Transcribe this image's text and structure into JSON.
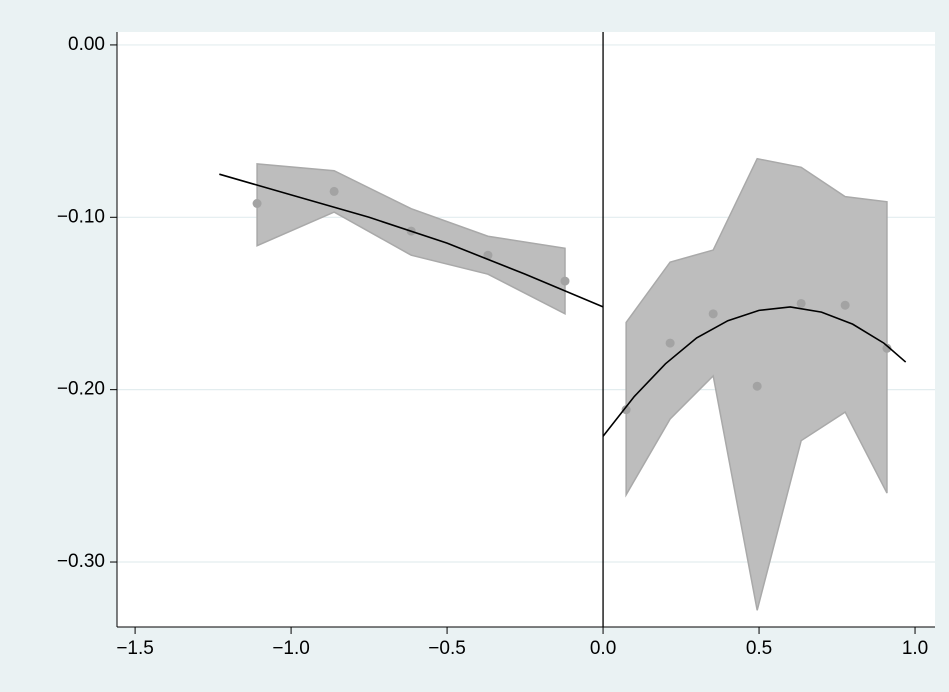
{
  "chart_data": {
    "type": "scatter",
    "xlim": [
      -1.558,
      1.064
    ],
    "ylim": [
      -0.3377,
      0.0075
    ],
    "xticks": [
      {
        "value": -1.5,
        "label": "−1.5"
      },
      {
        "value": -1.0,
        "label": "−1.0"
      },
      {
        "value": -0.5,
        "label": "−0.5"
      },
      {
        "value": 0.0,
        "label": "0.0"
      },
      0.5,
      {
        "value": 1.0,
        "label": "1.0"
      }
    ],
    "yticks": [
      {
        "value": 0.0,
        "label": "0.00"
      },
      {
        "value": -0.1,
        "label": "−0.10"
      },
      {
        "value": -0.2,
        "label": "−0.20"
      },
      {
        "value": -0.3,
        "label": "−0.30"
      }
    ],
    "grid": true,
    "xline": 0,
    "series": [
      {
        "type": "band",
        "color": "#bdbdbd",
        "x": [
          -1.109,
          -0.862,
          -0.615,
          -0.369,
          -0.122
        ],
        "upper": [
          -0.069,
          -0.073,
          -0.095,
          -0.111,
          -0.118
        ],
        "lower": [
          -0.1165,
          -0.097,
          -0.122,
          -0.133,
          -0.156
        ]
      },
      {
        "type": "band",
        "color": "#bdbdbd",
        "x": [
          0.074,
          0.215,
          0.353,
          0.494,
          0.635,
          0.776,
          0.91
        ],
        "upper": [
          -0.161,
          -0.126,
          -0.119,
          -0.066,
          -0.071,
          -0.088,
          -0.091
        ],
        "lower": [
          -0.261,
          -0.217,
          -0.192,
          -0.328,
          -0.2296,
          -0.213,
          -0.26
        ]
      },
      {
        "type": "points",
        "color": "#a3a3a3",
        "x": [
          -1.109,
          -0.862,
          -0.615,
          -0.369,
          -0.122
        ],
        "values": [
          -0.092,
          -0.085,
          -0.108,
          -0.122,
          -0.137
        ]
      },
      {
        "type": "points",
        "color": "#a3a3a3",
        "x": [
          0.074,
          0.215,
          0.353,
          0.494,
          0.635,
          0.776,
          0.91
        ],
        "values": [
          -0.2116,
          -0.173,
          -0.156,
          -0.198,
          -0.15,
          -0.151,
          -0.176
        ]
      },
      {
        "type": "line",
        "color": "#000000",
        "x": [
          -1.23,
          -1.0,
          -0.75,
          -0.5,
          -0.25,
          0.0
        ],
        "values": [
          -0.075,
          -0.087,
          -0.1,
          -0.115,
          -0.133,
          -0.152
        ]
      },
      {
        "type": "line",
        "color": "#000000",
        "x": [
          0.0,
          0.1,
          0.2,
          0.3,
          0.4,
          0.5,
          0.6,
          0.7,
          0.8,
          0.9,
          0.97
        ],
        "values": [
          -0.227,
          -0.204,
          -0.185,
          -0.17,
          -0.16,
          -0.154,
          -0.152,
          -0.155,
          -0.162,
          -0.173,
          -0.184
        ]
      }
    ]
  }
}
